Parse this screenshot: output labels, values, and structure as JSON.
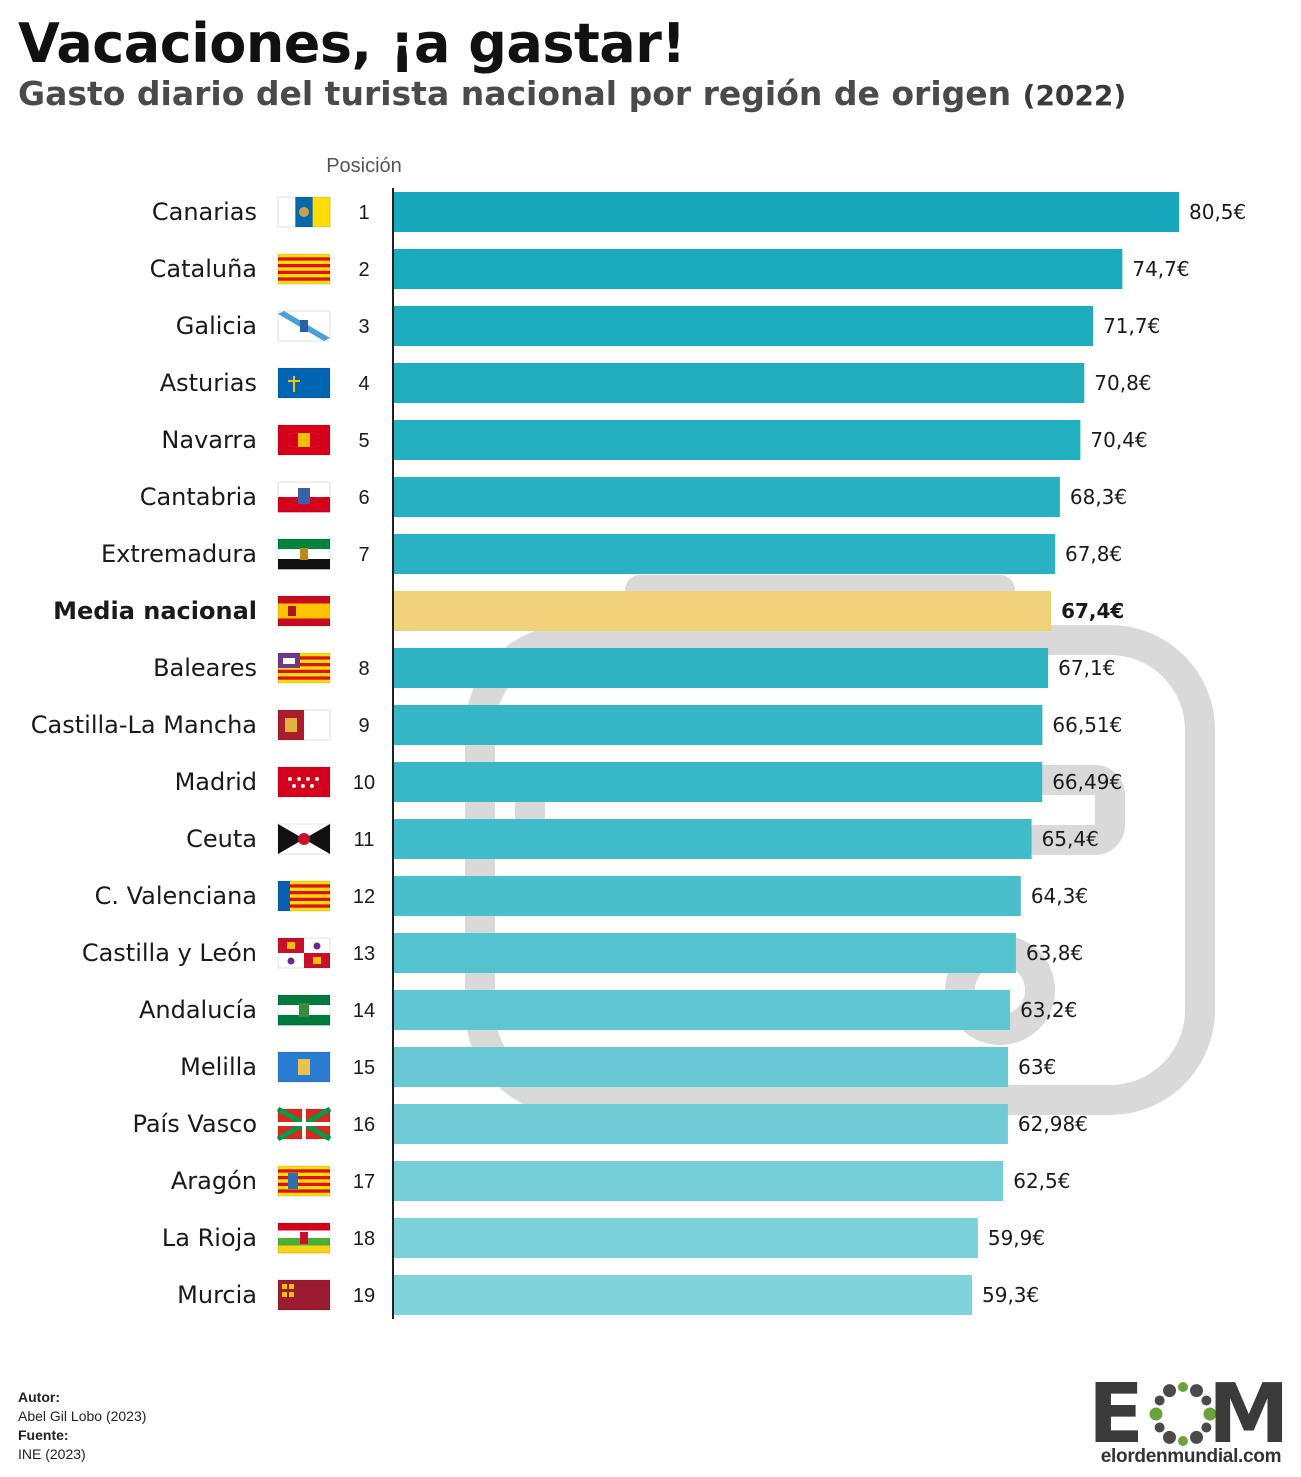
{
  "header": {
    "title": "Vacaciones, ¡a gastar!",
    "subtitle": "Gasto diario del turista nacional por región de origen",
    "subtitle_year": "(2022)"
  },
  "chart_data": {
    "type": "bar",
    "orientation": "horizontal",
    "position_header": "Posición",
    "categories": [
      "Canarias",
      "Cataluña",
      "Galicia",
      "Asturias",
      "Navarra",
      "Cantabria",
      "Extremadura",
      "Media nacional",
      "Baleares",
      "Castilla-La Mancha",
      "Madrid",
      "Ceuta",
      "C. Valenciana",
      "Castilla y León",
      "Andalucía",
      "Melilla",
      "País Vasco",
      "Aragón",
      "La Rioja",
      "Murcia"
    ],
    "positions": [
      "1",
      "2",
      "3",
      "4",
      "5",
      "6",
      "7",
      "",
      "8",
      "9",
      "10",
      "11",
      "12",
      "13",
      "14",
      "15",
      "16",
      "17",
      "18",
      "19"
    ],
    "values": [
      80.5,
      74.7,
      71.7,
      70.8,
      70.4,
      68.3,
      67.8,
      67.4,
      67.1,
      66.51,
      66.49,
      65.4,
      64.3,
      63.8,
      63.2,
      63,
      62.98,
      62.5,
      59.9,
      59.3
    ],
    "value_labels": [
      "80,5€",
      "74,7€",
      "71,7€",
      "70,8€",
      "70,4€",
      "68,3€",
      "67,8€",
      "67,4€",
      "67,1€",
      "66,51€",
      "66,49€",
      "65,4€",
      "64,3€",
      "63,8€",
      "63,2€",
      "63€",
      "62,98€",
      "62,5€",
      "59,9€",
      "59,3€"
    ],
    "highlight": "Media nacional",
    "bar_colors": [
      "#17a9bb",
      "#19aabc",
      "#1dadbe",
      "#20aebf",
      "#23afc0",
      "#27b1c1",
      "#2ab2c2",
      "#f0d27a",
      "#2fb4c4",
      "#34b6c6",
      "#38b8c7",
      "#3fbbc9",
      "#4abfcc",
      "#55c3cf",
      "#5fc6d2",
      "#68c9d4",
      "#70cbd6",
      "#76ced8",
      "#7bd0d9",
      "#80d2db"
    ],
    "flags": [
      "canarias-flag",
      "cataluna-flag",
      "galicia-flag",
      "asturias-flag",
      "navarra-flag",
      "cantabria-flag",
      "extremadura-flag",
      "spain-flag",
      "baleares-flag",
      "castilla-la-mancha-flag",
      "madrid-flag",
      "ceuta-flag",
      "valenciana-flag",
      "castilla-leon-flag",
      "andalucia-flag",
      "melilla-flag",
      "pais-vasco-flag",
      "aragon-flag",
      "la-rioja-flag",
      "murcia-flag"
    ],
    "xlim": [
      0,
      80.5
    ],
    "grid": false,
    "legend": "none"
  },
  "footer": {
    "author_label": "Autor:",
    "author": "Abel Gil Lobo (2023)",
    "source_label": "Fuente:",
    "source": "INE (2023)"
  },
  "logo": {
    "letters_left": "E",
    "letters_right": "M",
    "domain": "elordenmundial.com",
    "accent_color": "#6aa33a"
  }
}
